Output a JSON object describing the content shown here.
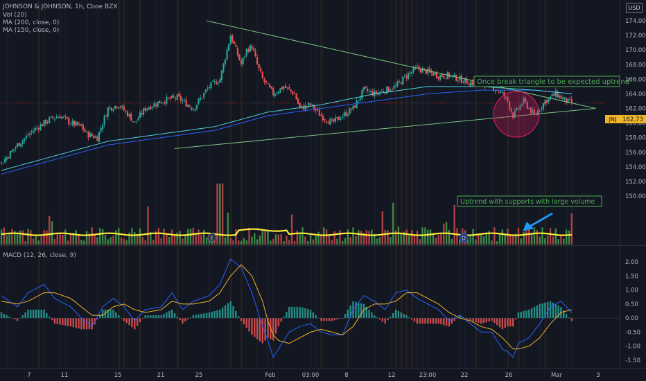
{
  "header": {
    "title": "JOHNSON & JOHNSON, 1h, Cboe BZX",
    "currency": "USD",
    "indicators": [
      "Vol (20)",
      "MA (200, close, 0)",
      "MA (150, close, 0)"
    ],
    "macd_label": "MACD (12, 26, close, 9)"
  },
  "colors": {
    "background": "#131722",
    "up": "#26a69a",
    "down": "#ef5350",
    "ma_200": "#2962ff",
    "ma_150": "#4dd0e1",
    "trendline": "#7cc47f",
    "macd_line": "#2962ff",
    "signal_line": "#f0b429",
    "volume_ma": "#ffeb3b",
    "annotation_text": "#4caf50",
    "circle": "#e91e63"
  },
  "chart_data": [
    {
      "type": "candlestick",
      "panel": "price",
      "symbol": "JNJ",
      "last_price": "162.73",
      "ylim": [
        149,
        175
      ],
      "y_ticks": [
        "174.00",
        "172.00",
        "170.00",
        "168.00",
        "166.00",
        "164.00",
        "162.00",
        "160.00",
        "158.00",
        "156.00",
        "154.00",
        "152.00",
        "150.00"
      ],
      "x_ticks": [
        "7",
        "11",
        "15",
        "21",
        "25",
        "Feb",
        "03:00",
        "8",
        "12",
        "23:00",
        "22",
        "26",
        "Mar",
        "3"
      ],
      "close_path": [
        [
          0,
          154.5
        ],
        [
          3,
          157
        ],
        [
          6,
          159
        ],
        [
          9,
          160.5
        ],
        [
          11,
          161
        ],
        [
          13,
          160
        ],
        [
          15,
          159.5
        ],
        [
          16,
          158.5
        ],
        [
          18,
          158
        ],
        [
          20,
          162
        ],
        [
          22,
          162.5
        ],
        [
          24,
          161
        ],
        [
          25,
          160
        ],
        [
          27,
          162
        ],
        [
          30,
          163
        ],
        [
          33,
          163.5
        ],
        [
          36,
          162
        ],
        [
          39,
          165
        ],
        [
          41,
          166
        ],
        [
          42,
          169
        ],
        [
          43,
          172
        ],
        [
          44,
          170
        ],
        [
          45,
          168
        ],
        [
          46,
          170
        ],
        [
          47,
          170.5
        ],
        [
          48,
          168
        ],
        [
          49,
          166
        ],
        [
          51,
          164
        ],
        [
          53,
          165
        ],
        [
          55,
          164
        ],
        [
          56,
          162
        ],
        [
          58,
          162.5
        ],
        [
          60,
          161
        ],
        [
          62,
          160
        ],
        [
          64,
          161
        ],
        [
          66,
          162
        ],
        [
          68,
          164.5
        ],
        [
          70,
          164
        ],
        [
          72,
          164.5
        ],
        [
          74,
          165
        ],
        [
          76,
          166.5
        ],
        [
          78,
          167.5
        ],
        [
          80,
          167
        ],
        [
          82,
          166.5
        ],
        [
          84,
          166.5
        ],
        [
          86,
          166
        ],
        [
          88,
          165.5
        ],
        [
          90,
          165.5
        ],
        [
          92,
          165
        ],
        [
          94,
          164
        ],
        [
          95,
          163
        ],
        [
          96,
          161
        ],
        [
          97,
          162
        ],
        [
          98,
          163
        ],
        [
          99,
          162
        ],
        [
          100,
          161
        ],
        [
          101,
          162
        ],
        [
          102,
          163
        ],
        [
          103,
          163.5
        ],
        [
          104,
          164
        ],
        [
          105,
          163.5
        ],
        [
          106,
          163
        ],
        [
          107,
          162.7
        ]
      ],
      "ma_200": [
        [
          0,
          153
        ],
        [
          20,
          157
        ],
        [
          40,
          159
        ],
        [
          50,
          161
        ],
        [
          60,
          162
        ],
        [
          70,
          163
        ],
        [
          80,
          164
        ],
        [
          90,
          164.5
        ],
        [
          100,
          164.5
        ],
        [
          107,
          164
        ]
      ],
      "ma_150": [
        [
          0,
          153.5
        ],
        [
          20,
          157.5
        ],
        [
          40,
          159.5
        ],
        [
          50,
          161.5
        ],
        [
          60,
          162.5
        ],
        [
          70,
          164
        ],
        [
          80,
          165
        ],
        [
          90,
          165
        ],
        [
          100,
          164.5
        ],
        [
          107,
          164
        ]
      ],
      "trendline_upper": [
        [
          38.5,
          174
        ],
        [
          111.5,
          162
        ]
      ],
      "trendline_lower": [
        [
          32.5,
          156.5
        ],
        [
          111.5,
          162
        ]
      ]
    },
    {
      "type": "bar",
      "panel": "volume",
      "volume_ma_level": 0.3
    },
    {
      "type": "line",
      "panel": "macd",
      "ylim": [
        -1.75,
        2.25
      ],
      "y_ticks": [
        "2.00",
        "1.50",
        "1.00",
        "0.50",
        "0.00",
        "-0.50",
        "-1.00",
        "-1.50"
      ],
      "macd": [
        [
          0,
          0.8
        ],
        [
          3,
          0.4
        ],
        [
          5,
          0.9
        ],
        [
          8,
          1.2
        ],
        [
          10,
          0.7
        ],
        [
          13,
          0.4
        ],
        [
          15,
          0.0
        ],
        [
          17,
          -0.3
        ],
        [
          19,
          0.4
        ],
        [
          21,
          0.7
        ],
        [
          23,
          0.4
        ],
        [
          25,
          -0.1
        ],
        [
          27,
          0.3
        ],
        [
          30,
          0.4
        ],
        [
          32,
          0.9
        ],
        [
          34,
          0.3
        ],
        [
          36,
          0.6
        ],
        [
          39,
          0.8
        ],
        [
          41,
          1.2
        ],
        [
          43,
          2.1
        ],
        [
          45,
          1.8
        ],
        [
          47,
          0.9
        ],
        [
          49,
          -0.3
        ],
        [
          50,
          -0.8
        ],
        [
          51,
          -1.4
        ],
        [
          52,
          -1.1
        ],
        [
          54,
          -0.5
        ],
        [
          56,
          -0.3
        ],
        [
          58,
          -0.2
        ],
        [
          60,
          -0.5
        ],
        [
          62,
          -0.6
        ],
        [
          64,
          -0.6
        ],
        [
          66,
          0.3
        ],
        [
          68,
          0.8
        ],
        [
          70,
          0.6
        ],
        [
          72,
          0.3
        ],
        [
          74,
          0.9
        ],
        [
          76,
          1.0
        ],
        [
          78,
          0.7
        ],
        [
          80,
          0.5
        ],
        [
          82,
          0.3
        ],
        [
          84,
          -0.1
        ],
        [
          86,
          0.1
        ],
        [
          88,
          -0.2
        ],
        [
          90,
          -0.5
        ],
        [
          92,
          -0.5
        ],
        [
          94,
          -1.1
        ],
        [
          95,
          -1.2
        ],
        [
          96,
          -1.4
        ],
        [
          97,
          -0.9
        ],
        [
          99,
          -0.7
        ],
        [
          101,
          -0.2
        ],
        [
          103,
          0.4
        ],
        [
          105,
          0.6
        ],
        [
          107,
          0.2
        ]
      ],
      "signal": [
        [
          0,
          0.6
        ],
        [
          3,
          0.5
        ],
        [
          5,
          0.6
        ],
        [
          8,
          0.9
        ],
        [
          10,
          0.9
        ],
        [
          13,
          0.7
        ],
        [
          15,
          0.4
        ],
        [
          17,
          0.1
        ],
        [
          19,
          0.1
        ],
        [
          21,
          0.4
        ],
        [
          23,
          0.5
        ],
        [
          25,
          0.3
        ],
        [
          27,
          0.2
        ],
        [
          30,
          0.3
        ],
        [
          32,
          0.6
        ],
        [
          34,
          0.5
        ],
        [
          36,
          0.5
        ],
        [
          39,
          0.6
        ],
        [
          41,
          0.9
        ],
        [
          43,
          1.5
        ],
        [
          45,
          1.9
        ],
        [
          47,
          1.5
        ],
        [
          49,
          0.6
        ],
        [
          50,
          -0.1
        ],
        [
          51,
          -0.6
        ],
        [
          52,
          -0.8
        ],
        [
          54,
          -0.9
        ],
        [
          56,
          -0.7
        ],
        [
          58,
          -0.5
        ],
        [
          60,
          -0.4
        ],
        [
          62,
          -0.5
        ],
        [
          64,
          -0.6
        ],
        [
          66,
          -0.3
        ],
        [
          68,
          0.3
        ],
        [
          70,
          0.5
        ],
        [
          72,
          0.5
        ],
        [
          74,
          0.6
        ],
        [
          76,
          0.9
        ],
        [
          78,
          0.9
        ],
        [
          80,
          0.7
        ],
        [
          82,
          0.5
        ],
        [
          84,
          0.2
        ],
        [
          86,
          0.0
        ],
        [
          88,
          -0.1
        ],
        [
          90,
          -0.3
        ],
        [
          92,
          -0.4
        ],
        [
          94,
          -0.7
        ],
        [
          95,
          -0.9
        ],
        [
          96,
          -1.1
        ],
        [
          97,
          -1.1
        ],
        [
          99,
          -1.0
        ],
        [
          101,
          -0.7
        ],
        [
          103,
          -0.2
        ],
        [
          105,
          0.2
        ],
        [
          107,
          0.3
        ]
      ]
    }
  ],
  "annotations": {
    "triangle_text": "Once break triangle to be expected uptrend",
    "volume_text": "Uptrend with supports with large volume",
    "event_markers": [
      "E",
      "D"
    ]
  }
}
